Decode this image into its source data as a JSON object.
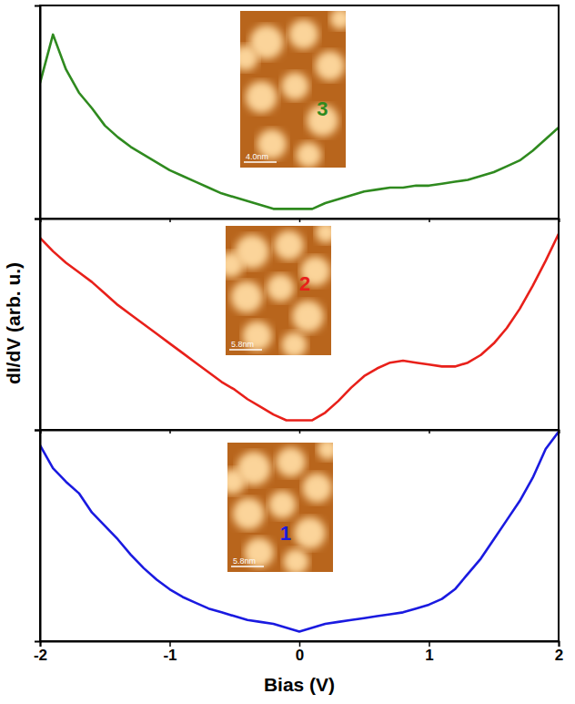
{
  "chart_data": [
    {
      "type": "line",
      "x": [
        -2,
        -1.9,
        -1.8,
        -1.7,
        -1.6,
        -1.5,
        -1.4,
        -1.3,
        -1.2,
        -1.1,
        -1,
        -0.9,
        -0.8,
        -0.7,
        -0.6,
        -0.5,
        -0.4,
        -0.3,
        -0.2,
        -0.1,
        0,
        0.1,
        0.2,
        0.3,
        0.4,
        0.5,
        0.6,
        0.7,
        0.8,
        0.9,
        1,
        1.1,
        1.2,
        1.3,
        1.4,
        1.5,
        1.6,
        1.7,
        1.8,
        1.9,
        2
      ],
      "series": [
        {
          "color": "#2f8a1f",
          "values": [
            0.65,
            0.9,
            0.72,
            0.6,
            0.52,
            0.43,
            0.37,
            0.32,
            0.28,
            0.24,
            0.2,
            0.17,
            0.14,
            0.11,
            0.08,
            0.06,
            0.04,
            0.02,
            0,
            0,
            0,
            0,
            0.03,
            0.05,
            0.07,
            0.09,
            0.1,
            0.11,
            0.11,
            0.12,
            0.12,
            0.13,
            0.14,
            0.15,
            0.17,
            0.19,
            0.22,
            0.25,
            0.3,
            0.36,
            0.42
          ]
        }
      ],
      "xlim": [
        -2,
        2
      ],
      "xticks": [
        -2,
        -1,
        0,
        1,
        2
      ],
      "ylim": [
        -0.05,
        1.05
      ],
      "yticks": [],
      "tick_labels": false,
      "inset": {
        "label": "3",
        "scale_bar": "4.0nm"
      }
    },
    {
      "type": "line",
      "x": [
        -2,
        -1.9,
        -1.8,
        -1.7,
        -1.6,
        -1.5,
        -1.4,
        -1.3,
        -1.2,
        -1.1,
        -1,
        -0.9,
        -0.8,
        -0.7,
        -0.6,
        -0.5,
        -0.4,
        -0.3,
        -0.2,
        -0.1,
        0,
        0.1,
        0.2,
        0.3,
        0.4,
        0.5,
        0.6,
        0.7,
        0.8,
        0.9,
        1,
        1.1,
        1.2,
        1.3,
        1.4,
        1.5,
        1.6,
        1.7,
        1.8,
        1.9,
        2
      ],
      "series": [
        {
          "color": "#e8201a",
          "values": [
            0.95,
            0.88,
            0.82,
            0.77,
            0.72,
            0.66,
            0.6,
            0.55,
            0.5,
            0.45,
            0.4,
            0.35,
            0.3,
            0.25,
            0.2,
            0.16,
            0.11,
            0.07,
            0.03,
            0,
            0,
            0,
            0.04,
            0.1,
            0.17,
            0.23,
            0.27,
            0.3,
            0.31,
            0.3,
            0.29,
            0.28,
            0.28,
            0.3,
            0.34,
            0.4,
            0.48,
            0.58,
            0.7,
            0.83,
            0.97
          ]
        }
      ],
      "xlim": [
        -2,
        2
      ],
      "xticks": [
        -2,
        -1,
        0,
        1,
        2
      ],
      "ylim": [
        -0.05,
        1.05
      ],
      "yticks": [],
      "tick_labels": false,
      "ylabel": "dI/dV (arb. u.)",
      "inset": {
        "label": "2",
        "scale_bar": "5.8nm"
      }
    },
    {
      "type": "line",
      "x": [
        -2,
        -1.9,
        -1.8,
        -1.7,
        -1.6,
        -1.5,
        -1.4,
        -1.3,
        -1.2,
        -1.1,
        -1,
        -0.9,
        -0.8,
        -0.7,
        -0.6,
        -0.5,
        -0.4,
        -0.3,
        -0.2,
        -0.1,
        0,
        0.1,
        0.2,
        0.3,
        0.4,
        0.5,
        0.6,
        0.7,
        0.8,
        0.9,
        1,
        1.1,
        1.2,
        1.3,
        1.4,
        1.5,
        1.6,
        1.7,
        1.8,
        1.9,
        2
      ],
      "series": [
        {
          "color": "#1a1ae0",
          "values": [
            0.97,
            0.85,
            0.78,
            0.72,
            0.62,
            0.55,
            0.48,
            0.4,
            0.33,
            0.27,
            0.22,
            0.18,
            0.15,
            0.12,
            0.1,
            0.08,
            0.06,
            0.05,
            0.04,
            0.02,
            0,
            0.02,
            0.04,
            0.05,
            0.06,
            0.07,
            0.08,
            0.09,
            0.1,
            0.12,
            0.14,
            0.17,
            0.22,
            0.3,
            0.38,
            0.48,
            0.58,
            0.68,
            0.8,
            0.95,
            1.04
          ]
        }
      ],
      "xlim": [
        -2,
        2
      ],
      "xticks": [
        -2,
        -1,
        0,
        1,
        2
      ],
      "ylim": [
        -0.05,
        1.05
      ],
      "yticks": [],
      "tick_labels": "x",
      "xlabel": "Bias (V)",
      "inset": {
        "label": "1",
        "scale_bar": "5.8nm"
      }
    }
  ]
}
